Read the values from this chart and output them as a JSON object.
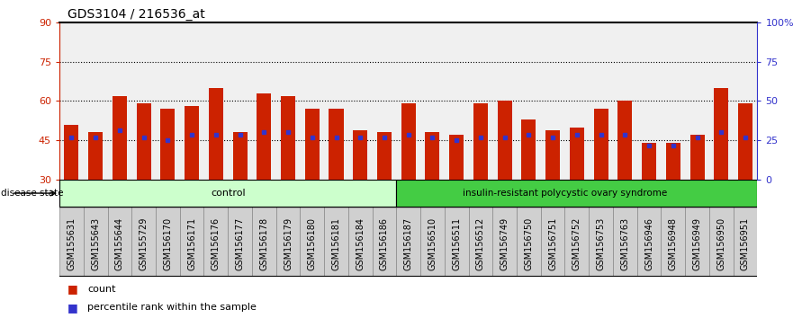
{
  "title": "GDS3104 / 216536_at",
  "samples": [
    "GSM155631",
    "GSM155643",
    "GSM155644",
    "GSM155729",
    "GSM156170",
    "GSM156171",
    "GSM156176",
    "GSM156177",
    "GSM156178",
    "GSM156179",
    "GSM156180",
    "GSM156181",
    "GSM156184",
    "GSM156186",
    "GSM156187",
    "GSM156510",
    "GSM156511",
    "GSM156512",
    "GSM156749",
    "GSM156750",
    "GSM156751",
    "GSM156752",
    "GSM156753",
    "GSM156763",
    "GSM156946",
    "GSM156948",
    "GSM156949",
    "GSM156950",
    "GSM156951"
  ],
  "bar_heights": [
    51,
    48,
    62,
    59,
    57,
    58,
    65,
    48,
    63,
    62,
    57,
    57,
    49,
    48,
    59,
    48,
    47,
    59,
    60,
    53,
    49,
    50,
    57,
    60,
    44,
    44,
    47,
    65,
    59
  ],
  "blue_markers": [
    46,
    46,
    49,
    46,
    45,
    47,
    47,
    47,
    48,
    48,
    46,
    46,
    46,
    46,
    47,
    46,
    45,
    46,
    46,
    47,
    46,
    47,
    47,
    47,
    43,
    43,
    46,
    48,
    46
  ],
  "bar_color": "#CC2200",
  "blue_color": "#3333CC",
  "ylim_left": [
    30,
    90
  ],
  "ylim_right": [
    0,
    100
  ],
  "yticks_left": [
    30,
    45,
    60,
    75,
    90
  ],
  "yticks_right": [
    0,
    25,
    50,
    75,
    100
  ],
  "ytick_labels_right": [
    "0",
    "25",
    "50",
    "75",
    "100%"
  ],
  "ytick_labels_left": [
    "30",
    "45",
    "60",
    "75",
    "90"
  ],
  "grid_lines": [
    45,
    60,
    75
  ],
  "control_count": 14,
  "control_label": "control",
  "disease_label": "insulin-resistant polycystic ovary syndrome",
  "control_color": "#CCFFCC",
  "disease_color": "#44CC44",
  "legend_count_label": "count",
  "legend_percentile_label": "percentile rank within the sample",
  "plot_bg_color": "#F0F0F0",
  "label_bg_color": "#D0D0D0",
  "bar_bottom": 30,
  "bar_width": 0.6,
  "title_fontsize": 10,
  "axis_fontsize": 8,
  "label_fontsize": 7
}
